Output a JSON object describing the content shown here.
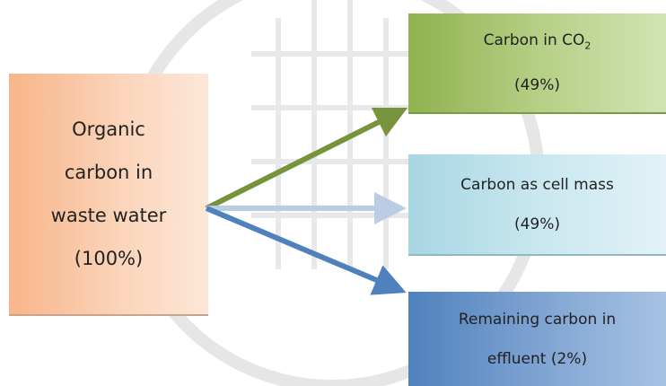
{
  "source": {
    "lines": [
      "Organic",
      "carbon in",
      "waste water",
      "(100%)"
    ]
  },
  "targets": [
    {
      "lines": [
        {
          "text": "Carbon in CO",
          "subscript": "2"
        },
        "(49%)"
      ]
    },
    {
      "lines": [
        "Carbon as cell mass",
        "(49%)"
      ]
    },
    {
      "lines": [
        "Remaining carbon in",
        "effluent (2%)"
      ]
    }
  ]
}
